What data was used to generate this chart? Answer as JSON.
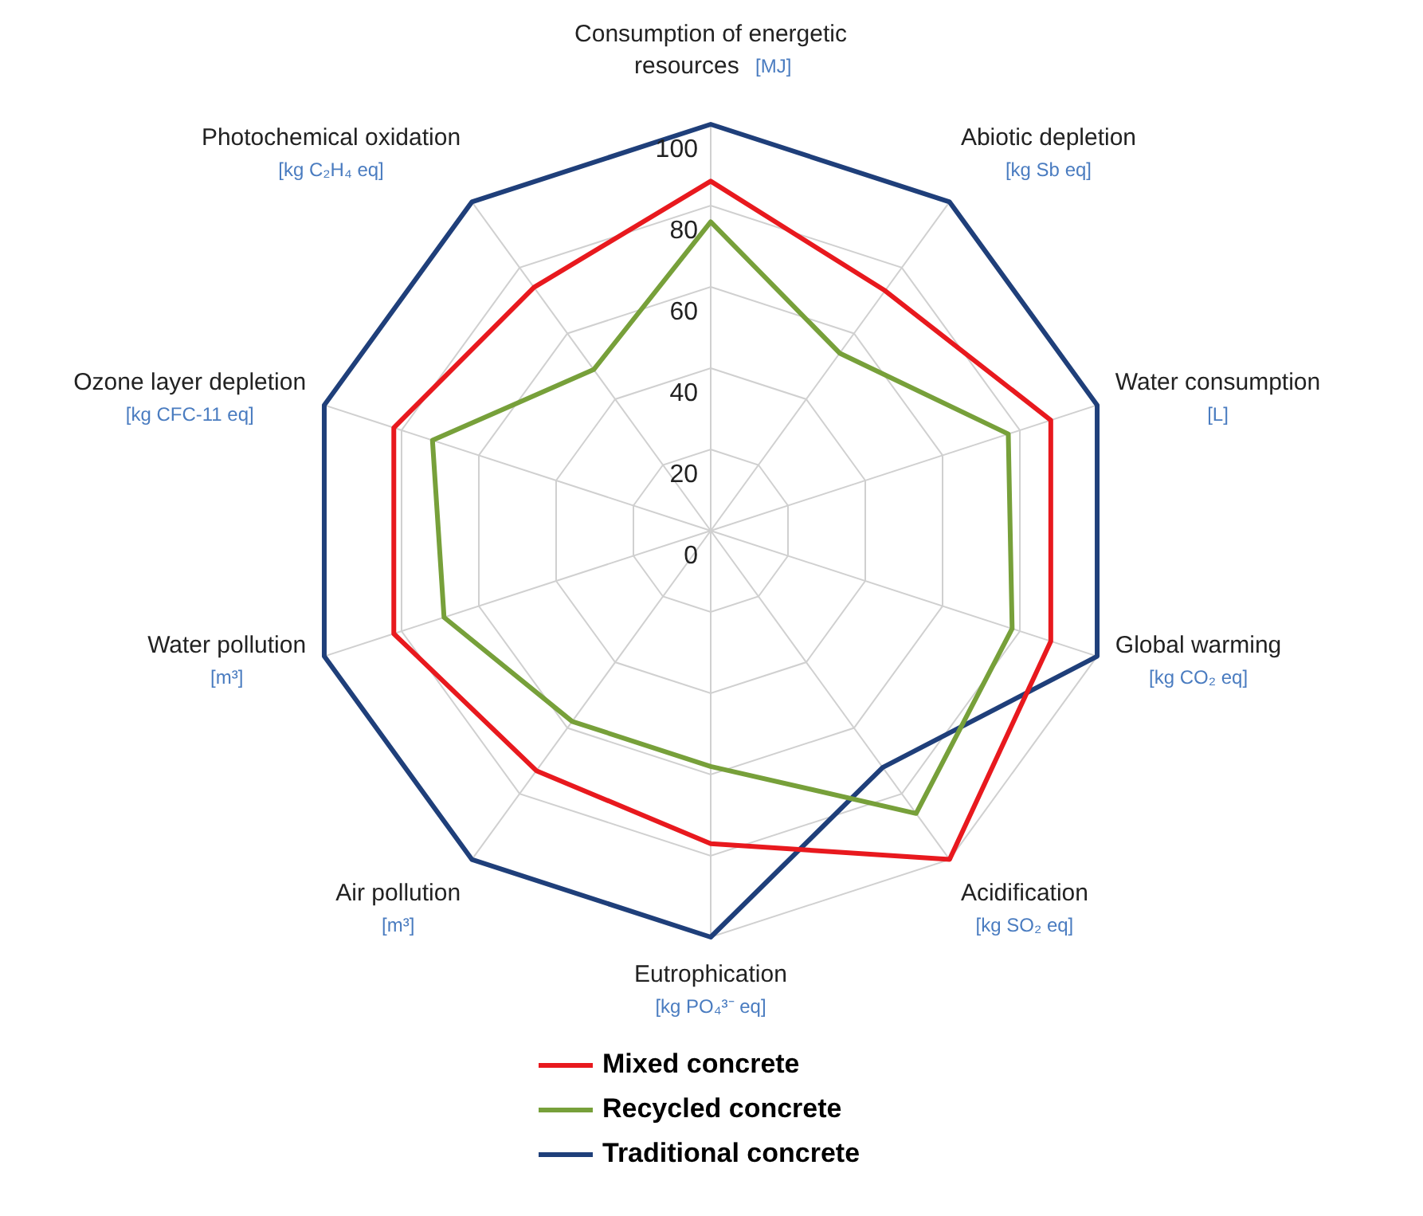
{
  "chart_data": {
    "type": "radar",
    "categories": [
      "Consumption of energetic resources [MJ]",
      "Abiotic depletion [kg Sb eq]",
      "Water consumption [L]",
      "Global warming [kg CO₂ eq]",
      "Acidification [kg SO₂ eq]",
      "Eutrophication [kg PO₄³⁻ eq]",
      "Air pollution [m³]",
      "Water pollution [m³]",
      "Ozone layer depletion [kg CFC-11 eq]",
      "Photochemical oxidation [kg C₂H₄ eq]"
    ],
    "series": [
      {
        "name": "Mixed concrete",
        "color": "#e8191e",
        "values": [
          86,
          73,
          88,
          88,
          100,
          77,
          73,
          82,
          82,
          74
        ]
      },
      {
        "name": "Recycled concrete",
        "color": "#77a03a",
        "values": [
          76,
          54,
          77,
          78,
          86,
          58,
          58,
          69,
          72,
          49
        ]
      },
      {
        "name": "Traditional concrete",
        "color": "#1f3f7a",
        "values": [
          100,
          100,
          100,
          100,
          72,
          100,
          100,
          100,
          100,
          100
        ]
      }
    ],
    "ylim": [
      0,
      100
    ],
    "yticks": [
      0,
      20,
      40,
      60,
      80,
      100
    ],
    "grid": true,
    "legend": "bottom",
    "marker": "none",
    "line_style": "solid"
  }
}
